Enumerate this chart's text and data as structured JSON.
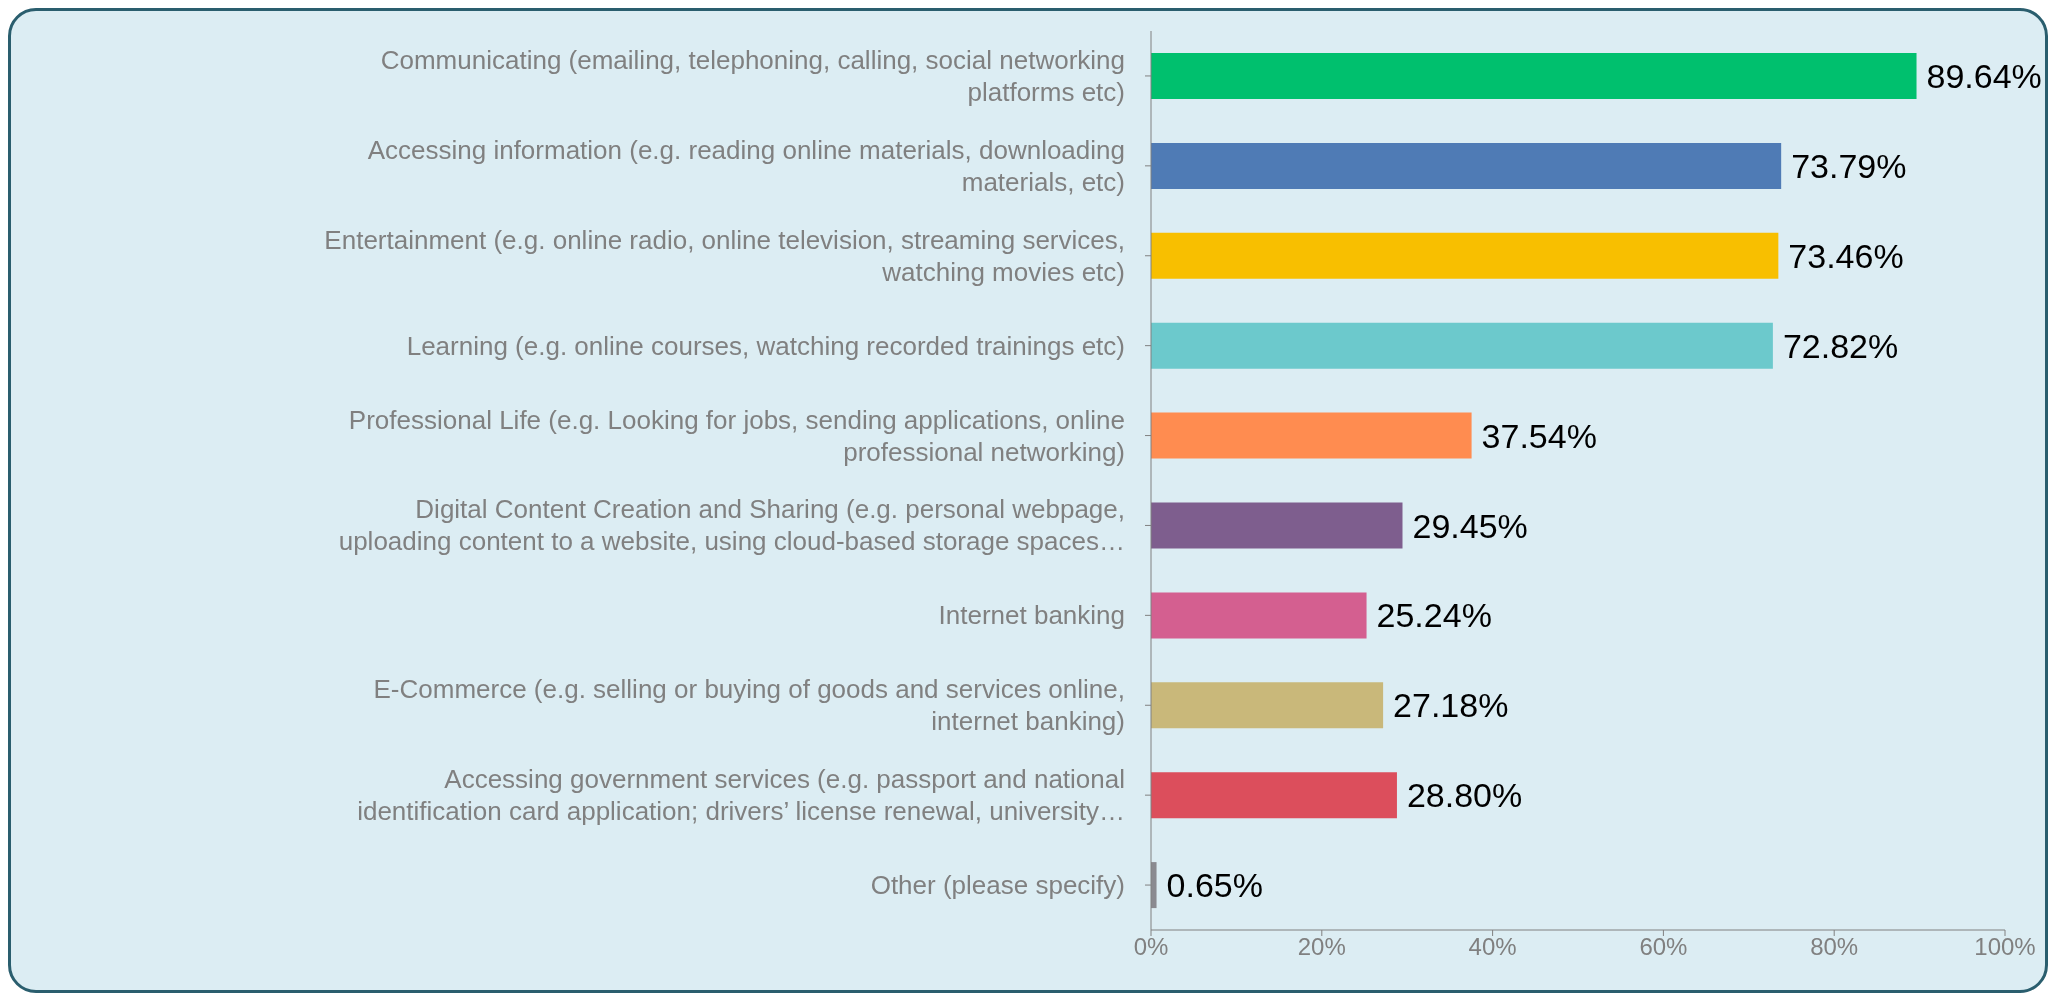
{
  "chart_data": {
    "type": "bar",
    "orientation": "horizontal",
    "categories": [
      "Communicating (emailing, telephoning, calling, social networking\nplatforms etc)",
      "Accessing information (e.g. reading online materials, downloading\nmaterials, etc)",
      "Entertainment (e.g. online radio, online television, streaming services,\nwatching movies etc)",
      "Learning (e.g. online courses, watching recorded trainings etc)",
      "Professional Life (e.g. Looking for jobs, sending applications, online\nprofessional networking)",
      "Digital Content Creation and Sharing (e.g. personal webpage,\nuploading content to a website, using cloud-based storage spaces…",
      "Internet banking",
      "E-Commerce (e.g. selling or buying of goods and services online,\ninternet banking)",
      "Accessing government services (e.g. passport and national\nidentification card application; drivers’ license renewal, university…",
      "Other (please specify)"
    ],
    "values": [
      89.64,
      73.79,
      73.46,
      72.82,
      37.54,
      29.45,
      25.24,
      27.18,
      28.8,
      0.65
    ],
    "value_labels": [
      "89.64%",
      "73.79%",
      "73.46%",
      "72.82%",
      "37.54%",
      "29.45%",
      "25.24%",
      "27.18%",
      "28.80%",
      "0.65%"
    ],
    "colors": [
      "#00c06e",
      "#4f7bb5",
      "#f8bf00",
      "#6cc9cc",
      "#ff8c50",
      "#7e5e8e",
      "#d45f90",
      "#c9b87a",
      "#dc4e5c",
      "#8a8a90"
    ],
    "xlim": [
      0,
      100
    ],
    "xticks": [
      {
        "value": 0,
        "label": "0%"
      },
      {
        "value": 20,
        "label": "20%"
      },
      {
        "value": 40,
        "label": "40%"
      },
      {
        "value": 60,
        "label": "60%"
      },
      {
        "value": 80,
        "label": "80%"
      },
      {
        "value": 100,
        "label": "100%"
      }
    ],
    "grid": false,
    "legend": false
  }
}
